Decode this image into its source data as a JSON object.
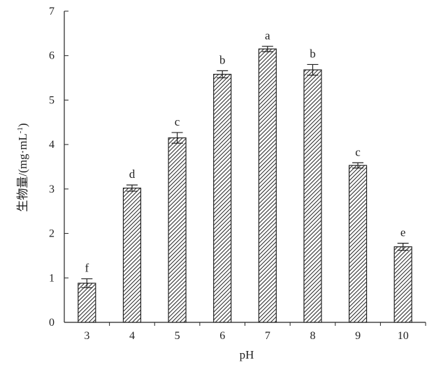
{
  "chart_data": {
    "type": "bar",
    "categories": [
      "3",
      "4",
      "5",
      "6",
      "7",
      "8",
      "9",
      "10"
    ],
    "values": [
      0.88,
      3.02,
      4.15,
      5.58,
      6.15,
      5.68,
      3.53,
      1.7
    ],
    "error": [
      0.1,
      0.07,
      0.12,
      0.08,
      0.06,
      0.12,
      0.06,
      0.08
    ],
    "significance": [
      "f",
      "d",
      "c",
      "b",
      "a",
      "b",
      "c",
      "e"
    ],
    "xlabel": "pH",
    "ylabel": "生物量/(mg·mL",
    "ylabel_sup": "-1",
    "ylabel_close": ")",
    "ylim": [
      0,
      7
    ],
    "yticks": [
      "0",
      "1",
      "2",
      "3",
      "4",
      "5",
      "6",
      "7"
    ],
    "grid": false,
    "bar_fill": "hatched",
    "bar_color": "#222222"
  }
}
